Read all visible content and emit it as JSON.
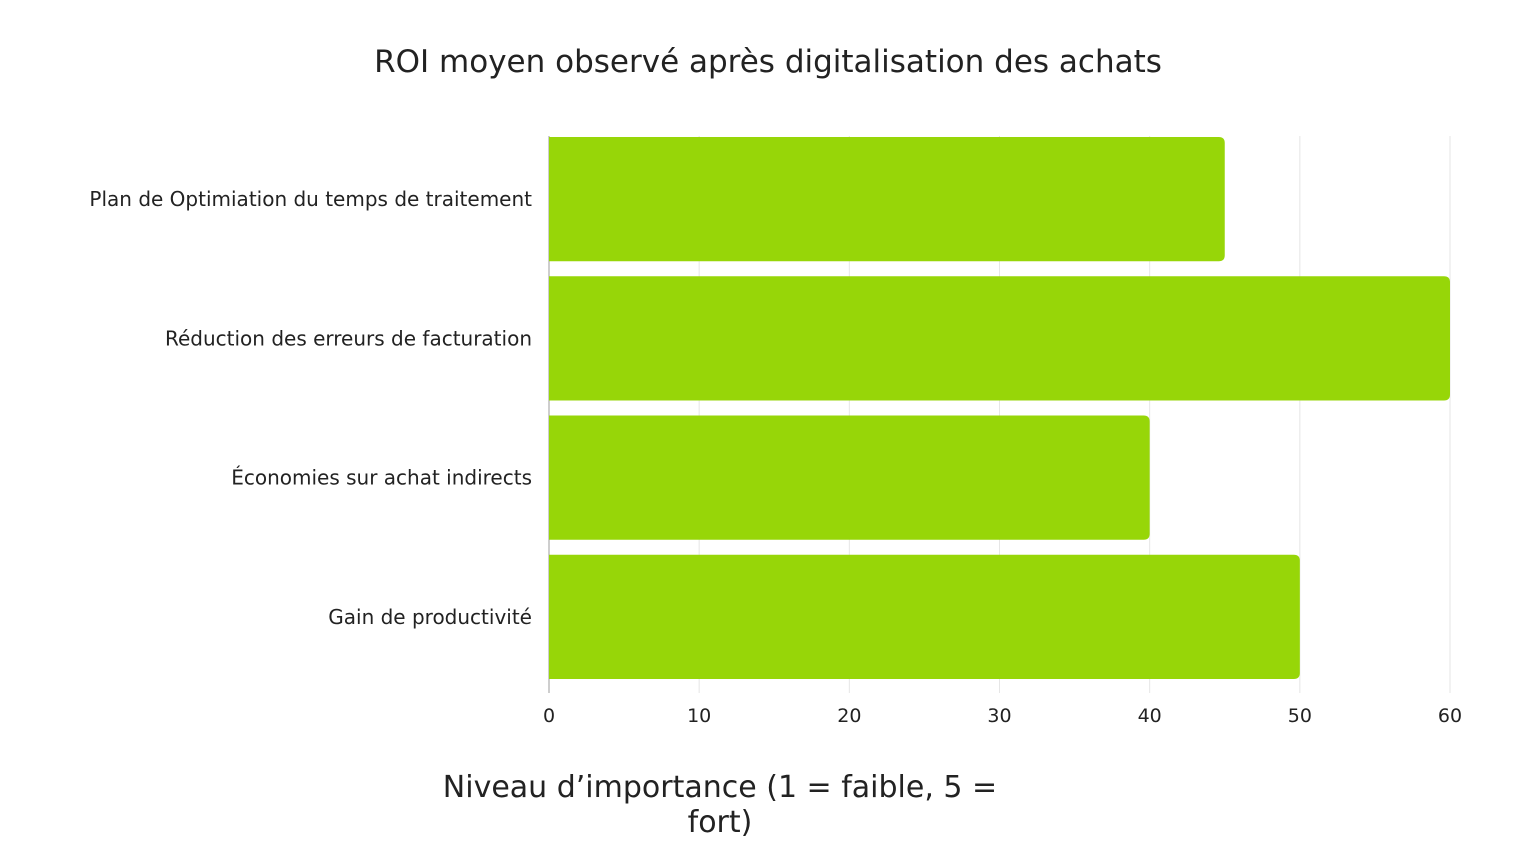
{
  "chart_data": {
    "type": "bar",
    "orientation": "horizontal",
    "title": "ROI moyen observé après digitalisation des achats",
    "xlabel": "Niveau d’importance (1 = faible, 5 = fort)",
    "ylabel": "",
    "categories": [
      "Plan de Optimiation du temps de traitement",
      "Réduction des erreurs de facturation",
      "Économies sur achat indirects",
      "Gain de productivité"
    ],
    "values": [
      45,
      60,
      40,
      50
    ],
    "xlim": [
      0,
      60
    ],
    "xticks": [
      0,
      10,
      20,
      30,
      40,
      50,
      60
    ],
    "grid": "vertical",
    "legend": "none",
    "bar_color": "#97d608",
    "grid_color": "#e6e6e6",
    "axis_color": "#bdbdbd"
  }
}
